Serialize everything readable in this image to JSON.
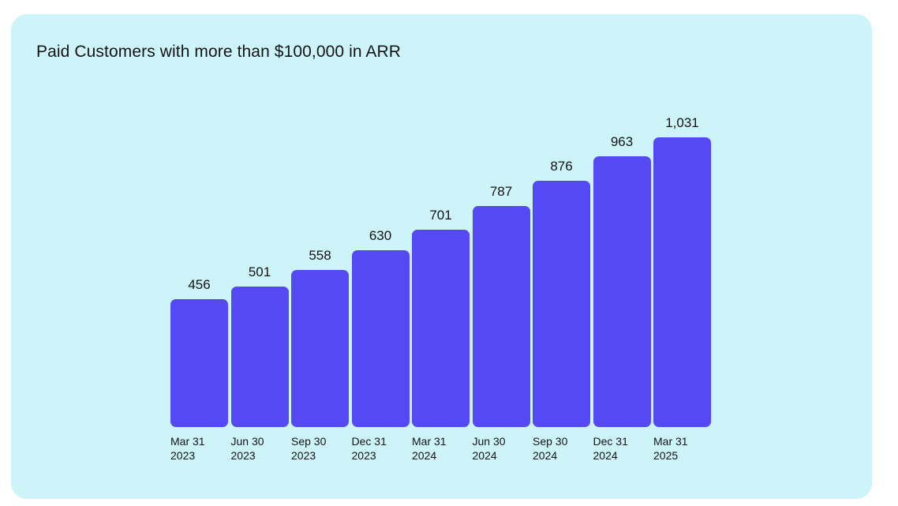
{
  "title": "Paid Customers with more than $100,000 in ARR",
  "colors": {
    "page_background": "#ffffff",
    "card_background": "#cdf4f8",
    "bar": "#5549f3",
    "text": "#131316"
  },
  "chart_data": {
    "type": "bar",
    "title": "Paid Customers with more than $100,000 in ARR",
    "xlabel": "",
    "ylabel": "",
    "categories": [
      "Mar 31 2023",
      "Jun 30 2023",
      "Sep 30 2023",
      "Dec 31 2023",
      "Mar 31 2024",
      "Jun 30 2024",
      "Sep 30 2024",
      "Dec 31 2024",
      "Mar 31 2025"
    ],
    "category_lines": [
      [
        "Mar 31",
        "2023"
      ],
      [
        "Jun 30",
        "2023"
      ],
      [
        "Sep 30",
        "2023"
      ],
      [
        "Dec 31",
        "2023"
      ],
      [
        "Mar 31",
        "2024"
      ],
      [
        "Jun 30",
        "2024"
      ],
      [
        "Sep 30",
        "2024"
      ],
      [
        "Dec 31",
        "2024"
      ],
      [
        "Mar 31",
        "2025"
      ]
    ],
    "values": [
      456,
      501,
      558,
      630,
      701,
      787,
      876,
      963,
      1031
    ],
    "value_labels": [
      "456",
      "501",
      "558",
      "630",
      "701",
      "787",
      "876",
      "963",
      "1,031"
    ],
    "ylim": [
      0,
      1031
    ],
    "grid": false,
    "legend": false,
    "data_labels": "above bars"
  }
}
